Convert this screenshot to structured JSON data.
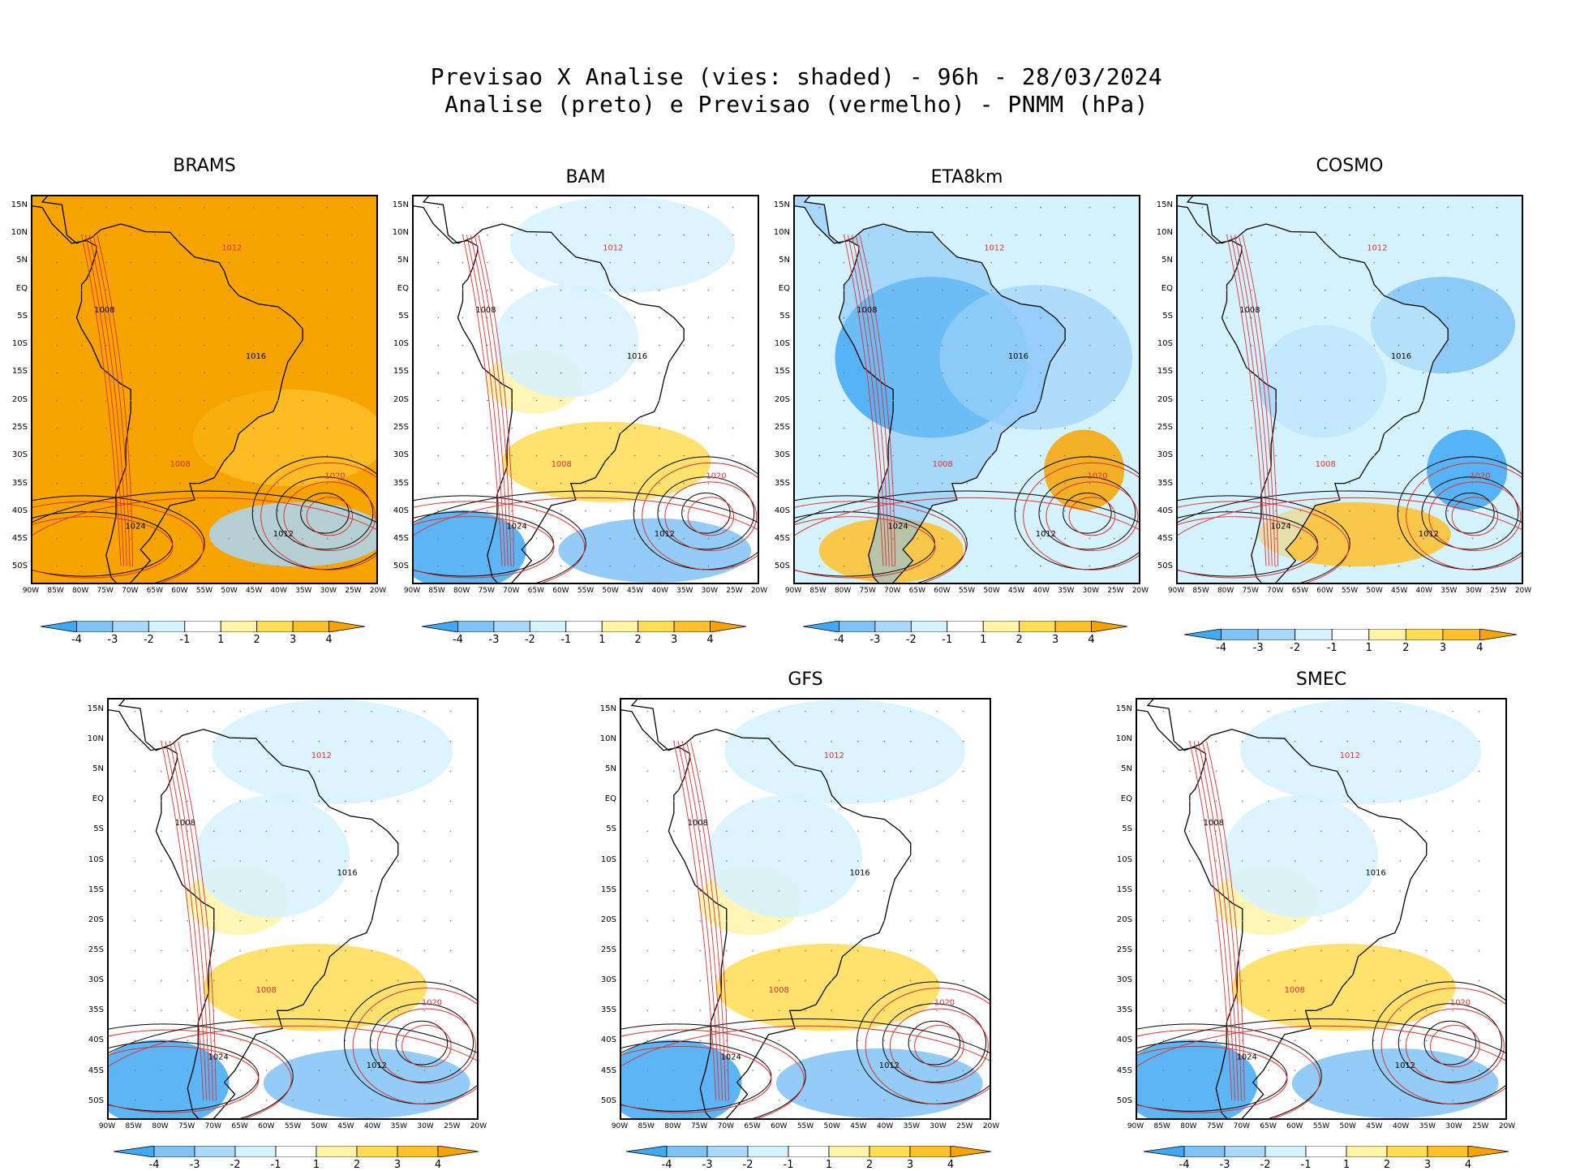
{
  "title": {
    "line1": "Previsao X Analise (vies: shaded) - 96h - 28/03/2024",
    "line2": "Analise (preto) e Previsao (vermelho) - PNMM (hPa)"
  },
  "axes": {
    "lat_labels": [
      "15N",
      "10N",
      "5N",
      "EQ",
      "5S",
      "10S",
      "15S",
      "20S",
      "25S",
      "30S",
      "35S",
      "40S",
      "45S",
      "50S"
    ],
    "lon_labels": [
      "90W",
      "85W",
      "80W",
      "75W",
      "70W",
      "65W",
      "60W",
      "55W",
      "50W",
      "45W",
      "40W",
      "35W",
      "30W",
      "25W",
      "20W"
    ]
  },
  "colorbar": {
    "labels": [
      "-4",
      "-3",
      "-2",
      "-1",
      "1",
      "2",
      "3",
      "4"
    ],
    "colors": [
      "#3fa9f5",
      "#7fc3f6",
      "#a8d8fa",
      "#d5f2ff",
      "#ffffff",
      "#fff3a8",
      "#ffdd55",
      "#ffc02a",
      "#f7a400"
    ]
  },
  "colors": {
    "analysis_contour": "#000000",
    "forecast_contour": "#e03030",
    "land_fill": "#ffffff"
  },
  "panels": [
    {
      "name": "BRAMS",
      "title": "BRAMS",
      "bias": "warm"
    },
    {
      "name": "BAM",
      "title": "BAM",
      "bias": "mixed"
    },
    {
      "name": "ETA8km",
      "title": "ETA8km",
      "bias": "cold"
    },
    {
      "name": "COSMO",
      "title": "COSMO",
      "bias": "mixed-cold"
    },
    {
      "name": "unnamed",
      "title": "",
      "bias": "mixed"
    },
    {
      "name": "GFS",
      "title": "GFS",
      "bias": "mixed"
    },
    {
      "name": "SMEC",
      "title": "SMEC",
      "bias": "mixed"
    }
  ],
  "isobar_labels": {
    "common": [
      "1008",
      "1012",
      "1016",
      "1020",
      "1024"
    ]
  }
}
